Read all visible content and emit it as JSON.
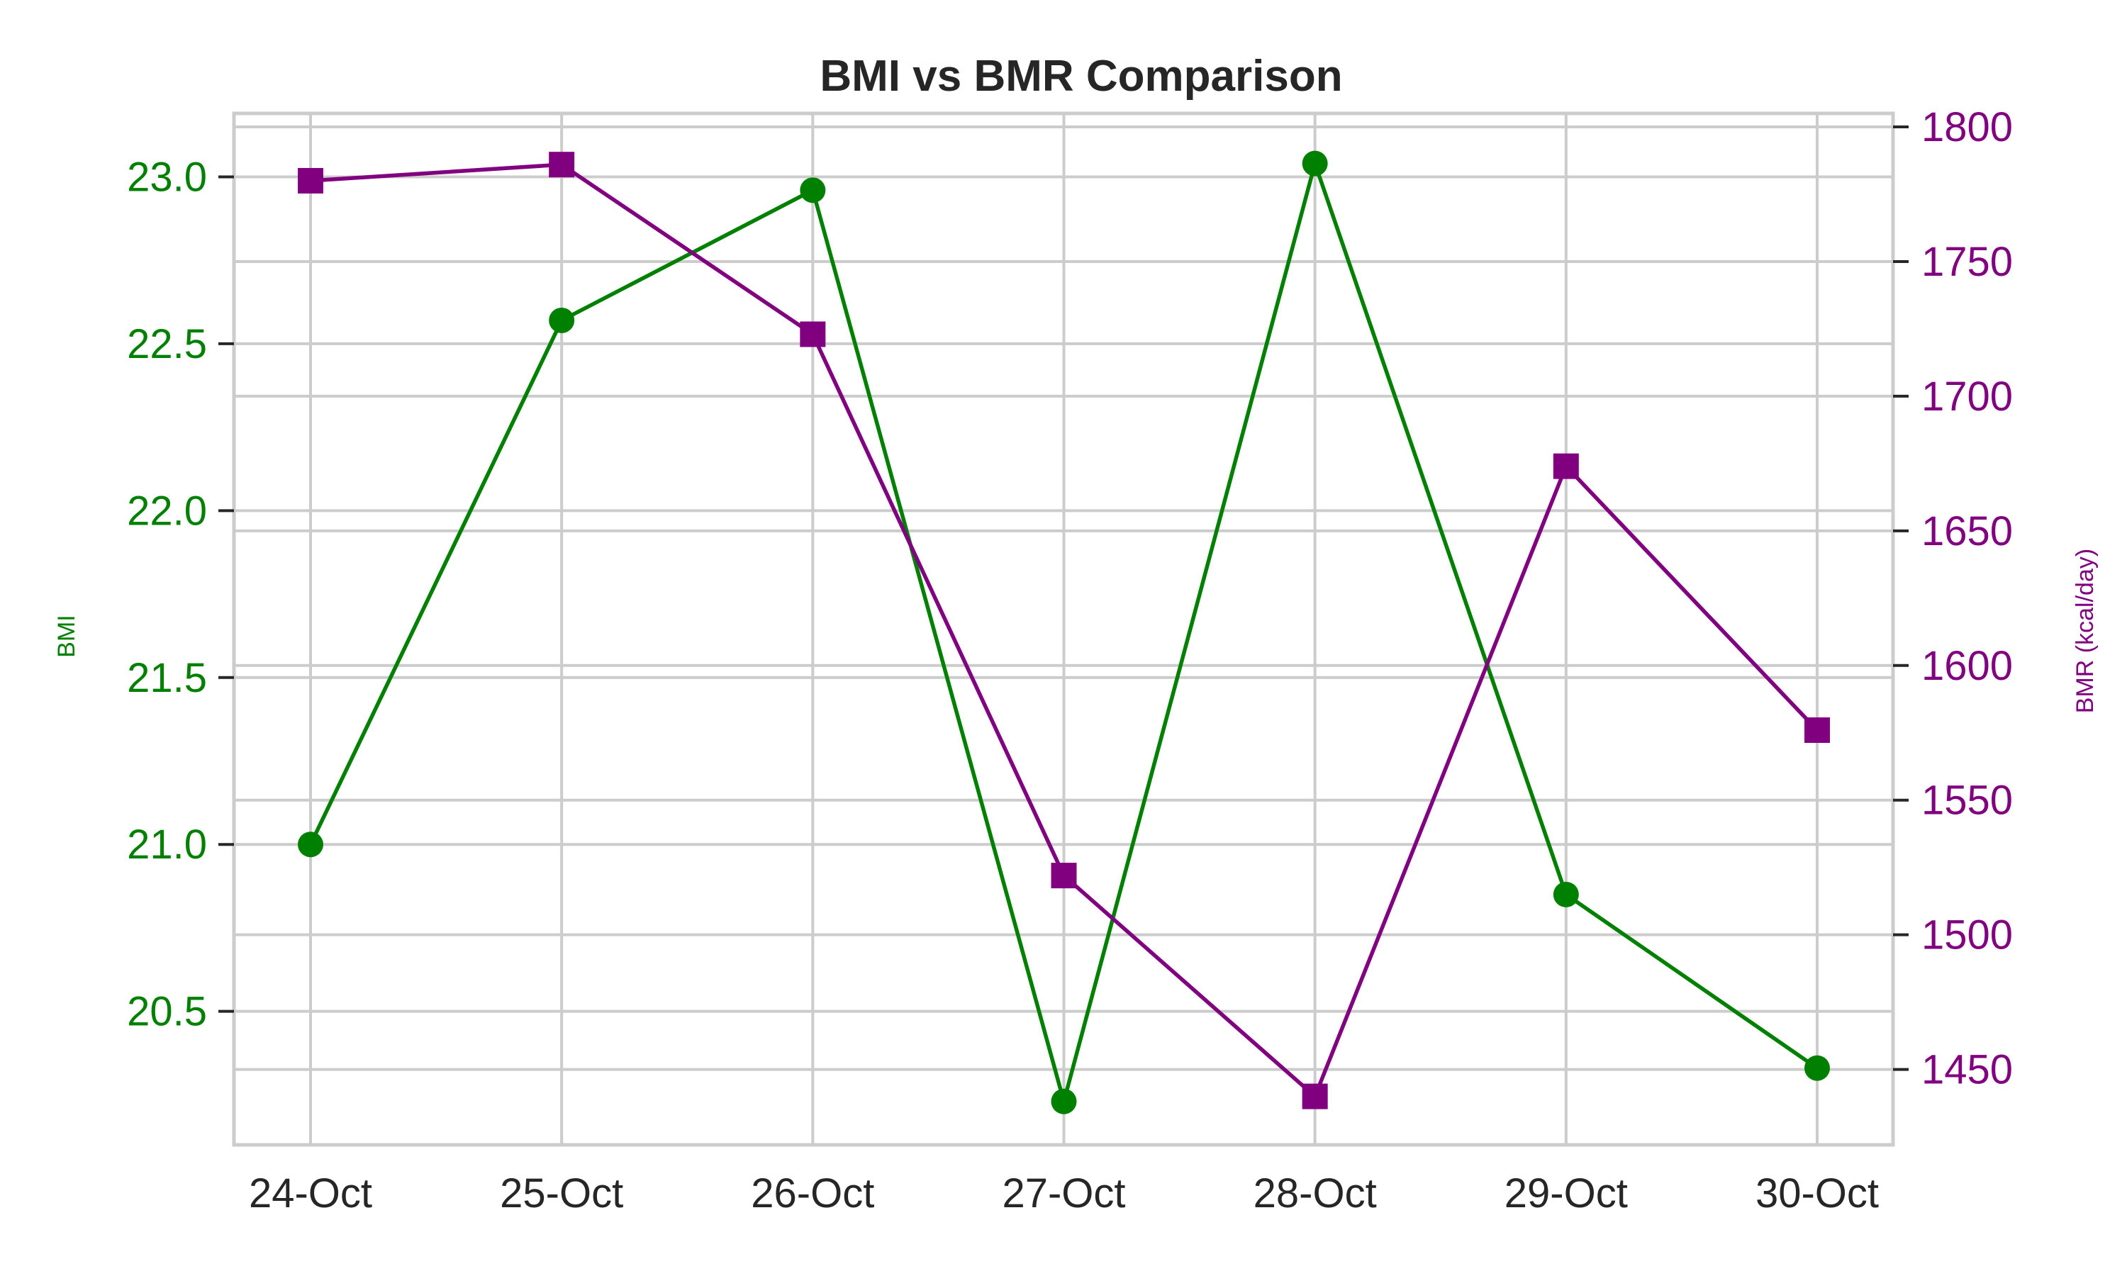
{
  "chart_data": {
    "type": "line",
    "title": "BMI vs BMR Comparison",
    "categories": [
      "24-Oct",
      "25-Oct",
      "26-Oct",
      "27-Oct",
      "28-Oct",
      "29-Oct",
      "30-Oct"
    ],
    "series": [
      {
        "axis": "left",
        "values": [
          21.0,
          22.57,
          22.96,
          20.23,
          23.04,
          20.85,
          20.33
        ],
        "color": "#008000",
        "marker": "circle"
      },
      {
        "axis": "right",
        "values": [
          1780,
          1786,
          1723,
          1522,
          1440,
          1674,
          1576
        ],
        "color": "#800080",
        "marker": "square"
      }
    ],
    "y_left": {
      "label": "BMI",
      "ticks": [
        "20.5",
        "21.0",
        "21.5",
        "22.0",
        "22.5",
        "23.0"
      ],
      "tick_values": [
        20.5,
        21.0,
        21.5,
        22.0,
        22.5,
        23.0
      ],
      "ylim": [
        20.1,
        23.19
      ],
      "color": "#008000"
    },
    "y_right": {
      "label": "BMR (kcal/day)",
      "ticks": [
        "1450",
        "1500",
        "1550",
        "1600",
        "1650",
        "1700",
        "1750",
        "1800"
      ],
      "tick_values": [
        1450,
        1500,
        1550,
        1600,
        1650,
        1700,
        1750,
        1800
      ],
      "ylim": [
        1422,
        1805
      ],
      "color": "#800080"
    },
    "grid": true
  }
}
